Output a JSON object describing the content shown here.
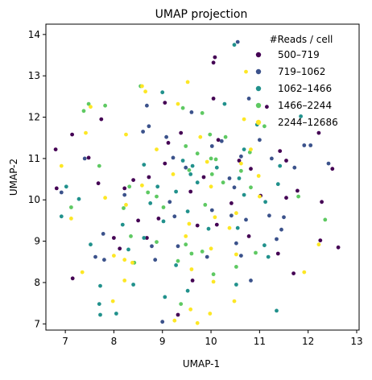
{
  "chart_data": {
    "type": "scatter",
    "title": "UMAP projection",
    "xlabel": "UMAP-1",
    "ylabel": "UMAP-2",
    "xlim": [
      6.6,
      13.05
    ],
    "ylim": [
      6.85,
      14.25
    ],
    "xticks": [
      "7",
      "8",
      "9",
      "10",
      "11",
      "12",
      "13"
    ],
    "yticks": [
      "7",
      "8",
      "9",
      "10",
      "11",
      "12",
      "13",
      "14"
    ],
    "grid": false,
    "legend": {
      "title": "#Reads / cell",
      "placement": "top-right",
      "entries": [
        "500–719",
        "719–1062",
        "1062–1466",
        "1466–2244",
        "2244–12686"
      ]
    },
    "series": [
      {
        "name": "500–719",
        "color": "#440154",
        "points": [
          [
            6.8,
            11.22
          ],
          [
            7.14,
            11.58
          ],
          [
            7.74,
            11.95
          ],
          [
            8.4,
            10.48
          ],
          [
            9.12,
            11.38
          ],
          [
            10.05,
            12.45
          ],
          [
            10.08,
            13.45
          ],
          [
            11.42,
            11.18
          ],
          [
            11.55,
            10.05
          ],
          [
            12.22,
            11.62
          ],
          [
            12.5,
            10.75
          ],
          [
            12.28,
            9.95
          ],
          [
            12.25,
            9.02
          ],
          [
            11.78,
            10.22
          ],
          [
            11.38,
            8.7
          ],
          [
            10.78,
            9.12
          ],
          [
            10.42,
            9.92
          ],
          [
            9.58,
            10.2
          ],
          [
            9.72,
            9.38
          ],
          [
            8.92,
            9.55
          ],
          [
            8.68,
            9.08
          ],
          [
            8.12,
            8.82
          ],
          [
            7.68,
            10.4
          ],
          [
            7.15,
            8.1
          ],
          [
            9.32,
            7.22
          ],
          [
            9.62,
            8.05
          ],
          [
            8.72,
            10.55
          ],
          [
            10.58,
            10.95
          ],
          [
            10.82,
            10.75
          ],
          [
            10.12,
            9.4
          ],
          [
            9.05,
            10.88
          ],
          [
            8.5,
            9.5
          ],
          [
            8.0,
            9.08
          ],
          [
            7.48,
            11.02
          ],
          [
            11.15,
            12.25
          ],
          [
            11.02,
            10.1
          ],
          [
            10.15,
            11.45
          ],
          [
            9.38,
            11.62
          ],
          [
            9.85,
            10.55
          ],
          [
            6.82,
            10.28
          ],
          [
            12.62,
            8.85
          ],
          [
            11.7,
            8.22
          ],
          [
            10.05,
            13.32
          ],
          [
            8.22,
            10.28
          ],
          [
            9.05,
            12.35
          ],
          [
            11.55,
            10.95
          ]
        ]
      },
      {
        "name": "719–1062",
        "color": "#3b528b",
        "points": [
          [
            6.92,
            10.18
          ],
          [
            7.4,
            11.0
          ],
          [
            7.62,
            8.62
          ],
          [
            8.22,
            10.12
          ],
          [
            8.68,
            12.28
          ],
          [
            8.72,
            11.78
          ],
          [
            9.08,
            11.52
          ],
          [
            9.22,
            11.02
          ],
          [
            9.48,
            10.78
          ],
          [
            9.6,
            12.12
          ],
          [
            10.02,
            11.3
          ],
          [
            10.22,
            11.42
          ],
          [
            10.38,
            10.52
          ],
          [
            10.48,
            10.3
          ],
          [
            10.62,
            11.05
          ],
          [
            10.42,
            9.62
          ],
          [
            10.52,
            8.95
          ],
          [
            10.72,
            9.52
          ],
          [
            11.2,
            9.62
          ],
          [
            11.5,
            9.58
          ],
          [
            11.72,
            10.78
          ],
          [
            11.92,
            11.32
          ],
          [
            12.05,
            11.32
          ],
          [
            12.42,
            10.88
          ],
          [
            11.45,
            9.28
          ],
          [
            11.35,
            9.05
          ],
          [
            9.92,
            8.62
          ],
          [
            9.32,
            8.88
          ],
          [
            8.78,
            8.88
          ],
          [
            7.78,
            9.18
          ],
          [
            10.02,
            9.75
          ],
          [
            9.25,
            9.6
          ],
          [
            8.6,
            11.65
          ],
          [
            9.15,
            9.95
          ],
          [
            10.55,
            13.82
          ],
          [
            10.78,
            12.45
          ],
          [
            11.0,
            11.45
          ],
          [
            11.25,
            11.0
          ],
          [
            10.62,
            8.65
          ],
          [
            10.82,
            8.05
          ],
          [
            8.85,
            8.55
          ],
          [
            7.8,
            8.55
          ],
          [
            9.0,
            7.05
          ]
        ]
      },
      {
        "name": "1062–1466",
        "color": "#21918c",
        "points": [
          [
            7.02,
            10.32
          ],
          [
            7.28,
            10.02
          ],
          [
            7.7,
            7.48
          ],
          [
            7.72,
            7.22
          ],
          [
            8.05,
            7.25
          ],
          [
            8.3,
            8.8
          ],
          [
            8.62,
            9.08
          ],
          [
            8.9,
            10.32
          ],
          [
            9.52,
            9.72
          ],
          [
            9.28,
            10.2
          ],
          [
            9.62,
            10.82
          ],
          [
            10.12,
            10.78
          ],
          [
            10.58,
            10.52
          ],
          [
            10.68,
            10.12
          ],
          [
            11.12,
            9.95
          ],
          [
            11.38,
            10.38
          ],
          [
            11.35,
            7.32
          ],
          [
            11.1,
            8.9
          ],
          [
            10.55,
            9.32
          ],
          [
            9.95,
            9.3
          ],
          [
            9.02,
            9.48
          ],
          [
            8.75,
            9.92
          ],
          [
            7.52,
            8.92
          ],
          [
            9.58,
            10.62
          ],
          [
            10.28,
            12.32
          ],
          [
            10.48,
            13.75
          ],
          [
            10.95,
            11.82
          ],
          [
            11.85,
            12.02
          ],
          [
            11.42,
            10.82
          ],
          [
            9.72,
            10.42
          ],
          [
            8.18,
            9.4
          ],
          [
            8.4,
            7.95
          ],
          [
            9.52,
            7.8
          ],
          [
            10.52,
            7.95
          ],
          [
            11.18,
            8.62
          ],
          [
            9.28,
            8.42
          ],
          [
            7.72,
            7.92
          ],
          [
            8.62,
            10.85
          ],
          [
            9.0,
            12.6
          ],
          [
            10.68,
            11.22
          ],
          [
            6.92,
            9.6
          ],
          [
            9.42,
            10.95
          ],
          [
            9.05,
            7.65
          ]
        ]
      },
      {
        "name": "1466–2244",
        "color": "#5ec962",
        "points": [
          [
            7.38,
            12.15
          ],
          [
            7.48,
            12.32
          ],
          [
            7.82,
            12.28
          ],
          [
            8.55,
            12.75
          ],
          [
            9.42,
            12.22
          ],
          [
            9.82,
            12.1
          ],
          [
            9.98,
            11.58
          ],
          [
            10.0,
            11.0
          ],
          [
            10.3,
            11.52
          ],
          [
            10.8,
            11.15
          ],
          [
            11.1,
            11.78
          ],
          [
            11.8,
            10.08
          ],
          [
            12.35,
            9.52
          ],
          [
            10.92,
            8.72
          ],
          [
            10.52,
            8.38
          ],
          [
            10.05,
            8.2
          ],
          [
            9.82,
            8.75
          ],
          [
            9.6,
            8.7
          ],
          [
            9.48,
            8.92
          ],
          [
            9.38,
            7.48
          ],
          [
            9.32,
            8.52
          ],
          [
            8.88,
            8.98
          ],
          [
            8.42,
            8.48
          ],
          [
            8.35,
            9.12
          ],
          [
            8.2,
            9.8
          ],
          [
            8.32,
            10.32
          ],
          [
            8.7,
            10.18
          ],
          [
            8.88,
            10.08
          ],
          [
            9.02,
            9.82
          ],
          [
            9.55,
            10.72
          ],
          [
            9.48,
            11.3
          ],
          [
            9.72,
            11.12
          ],
          [
            10.02,
            10.62
          ],
          [
            10.25,
            10.42
          ],
          [
            10.82,
            10.3
          ],
          [
            7.7,
            10.82
          ],
          [
            7.12,
            9.82
          ],
          [
            10.1,
            10.98
          ],
          [
            10.62,
            10.7
          ],
          [
            9.88,
            9.88
          ]
        ]
      },
      {
        "name": "2244–12686",
        "color": "#fde725",
        "points": [
          [
            6.92,
            10.82
          ],
          [
            7.12,
            9.55
          ],
          [
            7.35,
            8.25
          ],
          [
            7.82,
            10.05
          ],
          [
            7.98,
            7.55
          ],
          [
            8.25,
            11.58
          ],
          [
            8.38,
            8.48
          ],
          [
            8.25,
            9.88
          ],
          [
            8.65,
            12.62
          ],
          [
            8.88,
            11.22
          ],
          [
            8.58,
            12.75
          ],
          [
            9.32,
            12.32
          ],
          [
            9.52,
            12.85
          ],
          [
            9.55,
            9.42
          ],
          [
            9.48,
            9.12
          ],
          [
            9.6,
            8.32
          ],
          [
            9.78,
            11.52
          ],
          [
            9.92,
            10.92
          ],
          [
            10.0,
            10.32
          ],
          [
            10.08,
            9.58
          ],
          [
            10.38,
            9.32
          ],
          [
            10.52,
            9.68
          ],
          [
            10.62,
            10.88
          ],
          [
            10.68,
            11.95
          ],
          [
            10.82,
            11.22
          ],
          [
            10.98,
            10.58
          ],
          [
            11.0,
            10.08
          ],
          [
            10.52,
            8.68
          ],
          [
            10.05,
            8.02
          ],
          [
            10.0,
            8.82
          ],
          [
            10.48,
            7.55
          ],
          [
            9.98,
            7.25
          ],
          [
            9.72,
            7.02
          ],
          [
            9.25,
            7.08
          ],
          [
            8.22,
            8.55
          ],
          [
            8.22,
            8.05
          ],
          [
            8.0,
            8.65
          ],
          [
            7.42,
            11.62
          ],
          [
            7.52,
            12.25
          ],
          [
            12.22,
            8.92
          ],
          [
            11.92,
            8.25
          ],
          [
            9.58,
            7.35
          ],
          [
            10.72,
            13.1
          ],
          [
            8.58,
            10.35
          ],
          [
            9.22,
            10.62
          ]
        ]
      }
    ]
  }
}
